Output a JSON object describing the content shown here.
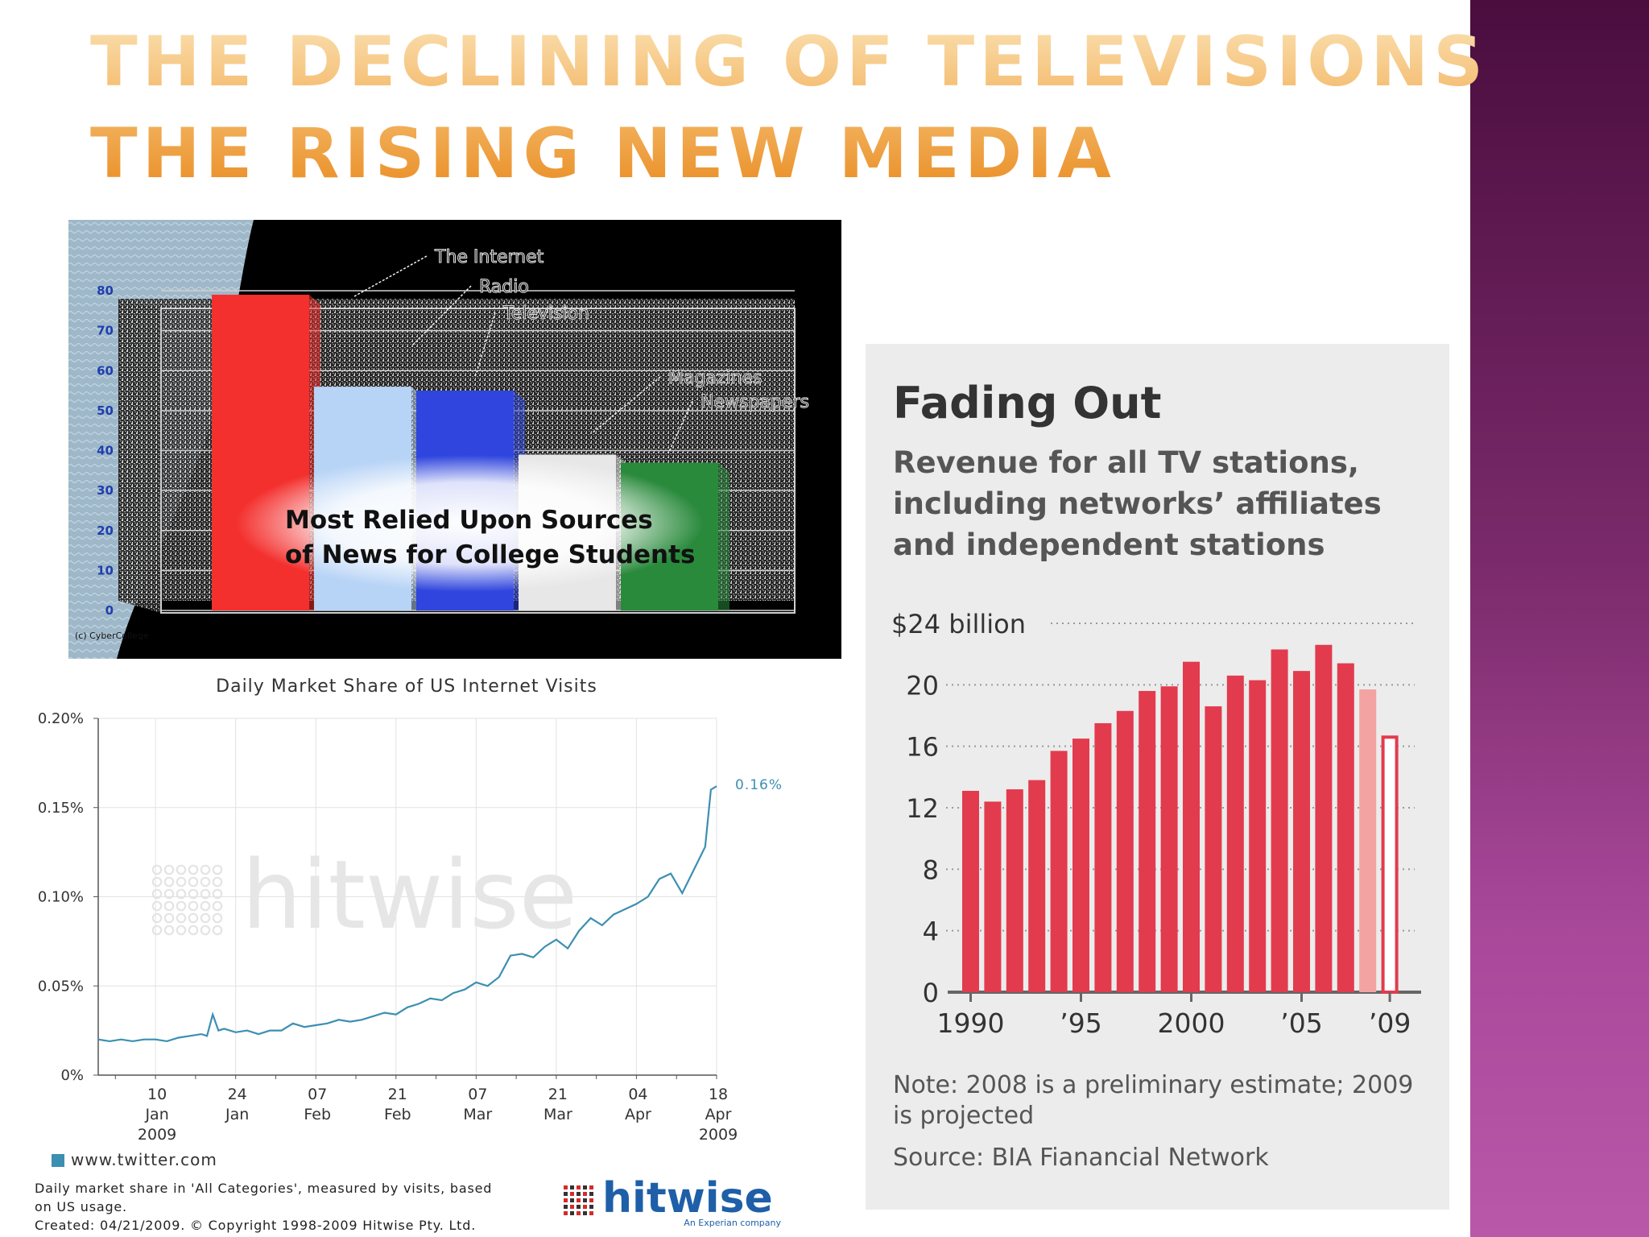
{
  "slide": {
    "title_line1": "The Declining of Televisions",
    "title_line2": "The Rising New Media"
  },
  "colors": {
    "side_band_top": "#4a0d3e",
    "side_band_bottom": "#b957a9",
    "title_orange": "#f2b25e",
    "fading_bar": "#e23b4e",
    "fading_estimate": "#f4a3a3",
    "twitter_line": "#3c8fb2"
  },
  "chart_data": [
    {
      "id": "news-sources",
      "type": "bar",
      "title": "Most Relied Upon Sources of News for College Students",
      "title_lines": [
        "Most Relied Upon Sources",
        "of News for College Students"
      ],
      "credit": "(c) CyberCollege",
      "categories": [
        "The Internet",
        "Radio",
        "Television",
        "Magazines",
        "Newspapers"
      ],
      "values": [
        79,
        56,
        55,
        39,
        37
      ],
      "bar_colors": [
        "#f3302e",
        "#b7d3f6",
        "#2f45de",
        "#e7e7e7",
        "#2a8a3c"
      ],
      "yticks": [
        0,
        10,
        20,
        30,
        40,
        50,
        60,
        70,
        80
      ],
      "ylim": [
        0,
        80
      ],
      "grid": true
    },
    {
      "id": "twitter-share",
      "type": "line",
      "title": "Daily Market Share of US Internet Visits",
      "yticks": [
        "0%",
        "0.05%",
        "0.10%",
        "0.15%",
        "0.20%"
      ],
      "ytick_values": [
        0,
        0.05,
        0.1,
        0.15,
        0.2
      ],
      "ylim": [
        0,
        0.2
      ],
      "xticks": [
        {
          "day": 7,
          "lines": [
            "10",
            "Jan",
            "2009"
          ]
        },
        {
          "day": 21,
          "lines": [
            "24",
            "Jan"
          ]
        },
        {
          "day": 35,
          "lines": [
            "07",
            "Feb"
          ]
        },
        {
          "day": 49,
          "lines": [
            "21",
            "Feb"
          ]
        },
        {
          "day": 63,
          "lines": [
            "07",
            "Mar"
          ]
        },
        {
          "day": 77,
          "lines": [
            "21",
            "Mar"
          ]
        },
        {
          "day": 91,
          "lines": [
            "04",
            "Apr"
          ]
        },
        {
          "day": 105,
          "lines": [
            "18",
            "Apr",
            "2009"
          ]
        }
      ],
      "xlim_days": [
        -3,
        105
      ],
      "end_label": "0.16%",
      "watermark": "hitwise",
      "series": [
        {
          "name": "www.twitter.com",
          "values": [
            [
              -3,
              0.02
            ],
            [
              -1,
              0.019
            ],
            [
              1,
              0.02
            ],
            [
              3,
              0.019
            ],
            [
              5,
              0.02
            ],
            [
              7,
              0.02
            ],
            [
              9,
              0.019
            ],
            [
              11,
              0.021
            ],
            [
              13,
              0.022
            ],
            [
              15,
              0.023
            ],
            [
              16,
              0.022
            ],
            [
              17,
              0.034
            ],
            [
              18,
              0.025
            ],
            [
              19,
              0.026
            ],
            [
              21,
              0.024
            ],
            [
              23,
              0.025
            ],
            [
              25,
              0.023
            ],
            [
              27,
              0.025
            ],
            [
              29,
              0.025
            ],
            [
              31,
              0.029
            ],
            [
              33,
              0.027
            ],
            [
              35,
              0.028
            ],
            [
              37,
              0.029
            ],
            [
              39,
              0.031
            ],
            [
              41,
              0.03
            ],
            [
              43,
              0.031
            ],
            [
              45,
              0.033
            ],
            [
              47,
              0.035
            ],
            [
              49,
              0.034
            ],
            [
              51,
              0.038
            ],
            [
              53,
              0.04
            ],
            [
              55,
              0.043
            ],
            [
              57,
              0.042
            ],
            [
              59,
              0.046
            ],
            [
              61,
              0.048
            ],
            [
              63,
              0.052
            ],
            [
              65,
              0.05
            ],
            [
              67,
              0.055
            ],
            [
              69,
              0.067
            ],
            [
              71,
              0.068
            ],
            [
              73,
              0.066
            ],
            [
              75,
              0.072
            ],
            [
              77,
              0.076
            ],
            [
              79,
              0.071
            ],
            [
              81,
              0.081
            ],
            [
              83,
              0.088
            ],
            [
              85,
              0.084
            ],
            [
              87,
              0.09
            ],
            [
              89,
              0.093
            ],
            [
              91,
              0.096
            ],
            [
              93,
              0.1
            ],
            [
              95,
              0.11
            ],
            [
              97,
              0.113
            ],
            [
              99,
              0.102
            ],
            [
              101,
              0.115
            ],
            [
              103,
              0.128
            ],
            [
              104,
              0.16
            ],
            [
              105,
              0.162
            ]
          ]
        }
      ],
      "legend": "www.twitter.com",
      "footnote_lines": [
        "Daily market share in 'All Categories', measured by visits, based",
        "on US usage.",
        "Created: 04/21/2009. © Copyright 1998-2009 Hitwise Pty. Ltd."
      ],
      "brand": "hitwise",
      "brand_tagline": "An Experian company"
    },
    {
      "id": "fading-out",
      "type": "bar",
      "title": "Fading Out",
      "subtitle_lines": [
        "Revenue for all TV stations,",
        "including networks’ affiliates",
        "and independent stations"
      ],
      "top_tick_label": "$24 billion",
      "yticks": [
        0,
        4,
        8,
        12,
        16,
        20,
        24
      ],
      "ylim": [
        0,
        24
      ],
      "x": [
        1990,
        1991,
        1992,
        1993,
        1994,
        1995,
        1996,
        1997,
        1998,
        1999,
        2000,
        2001,
        2002,
        2003,
        2004,
        2005,
        2006,
        2007,
        2008,
        2009
      ],
      "values": [
        13.1,
        12.4,
        13.2,
        13.8,
        15.7,
        16.5,
        17.5,
        18.3,
        19.6,
        19.9,
        21.5,
        18.6,
        20.6,
        20.3,
        22.3,
        20.9,
        22.6,
        21.4,
        19.7,
        16.7
      ],
      "estimate_flags": [
        "",
        "",
        "",
        "",
        "",
        "",
        "",
        "",
        "",
        "",
        "",
        "",
        "",
        "",
        "",
        "",
        "",
        "",
        "preliminary",
        "projected"
      ],
      "xtick_labels": [
        {
          "year": 1990,
          "label": "1990"
        },
        {
          "year": 1995,
          "label": "’95"
        },
        {
          "year": 2000,
          "label": "2000"
        },
        {
          "year": 2005,
          "label": "’05"
        },
        {
          "year": 2009,
          "label": "’09"
        }
      ],
      "note_lines": [
        "Note: 2008 is a preliminary estimate; 2009",
        "is projected"
      ],
      "source": "Source: BIA Fianancial Network"
    }
  ]
}
